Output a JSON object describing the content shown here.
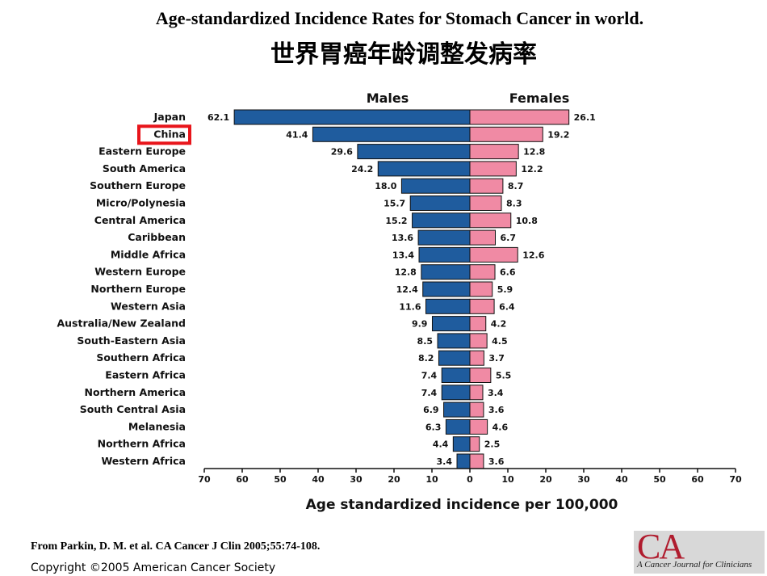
{
  "title_en": "Age-standardized Incidence Rates for Stomach Cancer in world.",
  "title_zh": "世界胃癌年龄调整发病率",
  "citation": "From Parkin, D. M. et al.  CA Cancer J Clin 2005;55:74-108.",
  "copyright": "Copyright ©2005 American Cancer Society",
  "logo": {
    "mark": "CA",
    "subtitle": "A Cancer Journal for Clinicians"
  },
  "colors": {
    "males": "#1f5c9e",
    "females": "#f08aa4",
    "highlight": "#e8151b"
  },
  "chart_data": {
    "type": "bar",
    "orientation": "horizontal-butterfly",
    "categories": [
      "Japan",
      "China",
      "Eastern Europe",
      "South America",
      "Southern Europe",
      "Micro/Polynesia",
      "Central America",
      "Caribbean",
      "Middle Africa",
      "Western Europe",
      "Northern Europe",
      "Western Asia",
      "Australia/New Zealand",
      "South-Eastern Asia",
      "Southern Africa",
      "Eastern Africa",
      "Northern America",
      "South Central Asia",
      "Melanesia",
      "Northern Africa",
      "Western Africa"
    ],
    "highlighted_category": "China",
    "series": [
      {
        "name": "Males",
        "values": [
          62.1,
          41.4,
          29.6,
          24.2,
          18.0,
          15.7,
          15.2,
          13.6,
          13.4,
          12.8,
          12.4,
          11.6,
          9.9,
          8.5,
          8.2,
          7.4,
          7.4,
          6.9,
          6.3,
          4.4,
          3.4
        ]
      },
      {
        "name": "Females",
        "values": [
          26.1,
          19.2,
          12.8,
          12.2,
          8.7,
          8.3,
          10.8,
          6.7,
          12.6,
          6.6,
          5.9,
          6.4,
          4.2,
          4.5,
          3.7,
          5.5,
          3.4,
          3.6,
          4.6,
          2.5,
          3.6
        ]
      }
    ],
    "value_labels": {
      "Males": [
        "62.1",
        "41.4",
        "29.6",
        "24.2",
        "18.0",
        "15.7",
        "15.2",
        "13.6",
        "13.4",
        "12.8",
        "12.4",
        "11.6",
        "9.9",
        "8.5",
        "8.2",
        "7.4",
        "7.4",
        "6.9",
        "6.3",
        "4.4",
        "3.4"
      ],
      "Females": [
        "26.1",
        "19.2",
        "12.8",
        "12.2",
        "8.7",
        "8.3",
        "10.8",
        "6.7",
        "12.6",
        "6.6",
        "5.9",
        "6.4",
        "4.2",
        "4.5",
        "3.7",
        "5.5",
        "3.4",
        "3.6",
        "4.6",
        "2.5",
        "3.6"
      ]
    },
    "xlabel": "Age standardized incidence per 100,000",
    "ylabel": "",
    "xlim": [
      0,
      70
    ],
    "xticks": [
      70,
      60,
      50,
      40,
      30,
      20,
      10,
      0,
      10,
      20,
      30,
      40,
      50,
      60,
      70
    ],
    "grid": false,
    "legend": "top"
  }
}
